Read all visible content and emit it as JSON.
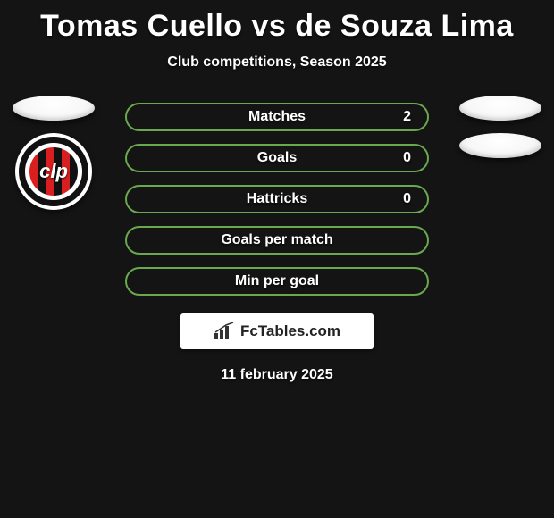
{
  "background_color": "#141414",
  "title": {
    "text": "Tomas Cuello vs de Souza Lima",
    "color": "#ffffff",
    "fontsize": 34,
    "fontweight": 800
  },
  "subtitle": {
    "text": "Club competitions, Season 2025",
    "color": "#ffffff",
    "fontsize": 16
  },
  "row_style": {
    "border_color": "#6aa84f",
    "border_width": 2,
    "background_color": "transparent",
    "label_color": "#ffffff",
    "value_color": "#ffffff",
    "height": 32,
    "radius": 16,
    "fontsize": 16
  },
  "rows": [
    {
      "label": "Matches",
      "value": "2"
    },
    {
      "label": "Goals",
      "value": "0"
    },
    {
      "label": "Hattricks",
      "value": "0"
    },
    {
      "label": "Goals per match",
      "value": ""
    },
    {
      "label": "Min per goal",
      "value": ""
    }
  ],
  "left_badges": {
    "placeholder_count": 1,
    "crest": {
      "ring_color": "#111111",
      "stripe_colors": [
        "#d81e1e",
        "#111111"
      ],
      "letters": "clp",
      "bg": "#ffffff"
    }
  },
  "right_badges": {
    "placeholder_count": 2
  },
  "footer_logo_text": "FcTables.com",
  "date": "11 february 2025"
}
